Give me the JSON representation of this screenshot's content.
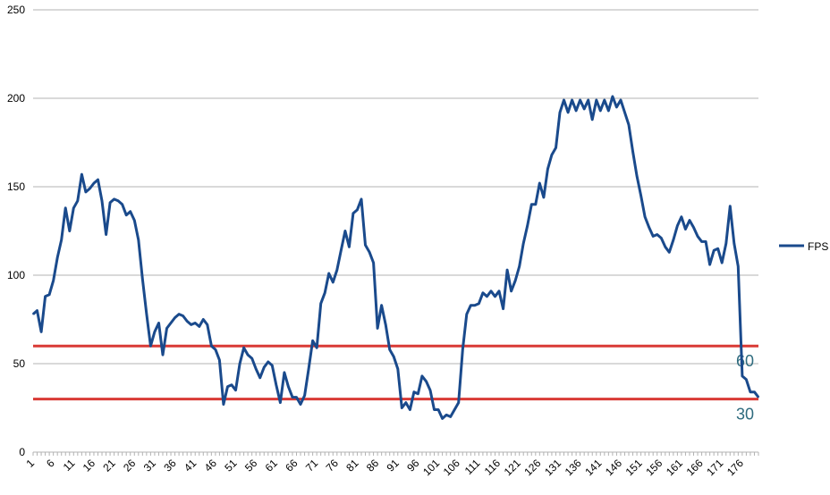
{
  "chart_data": {
    "type": "line",
    "title": "",
    "xlabel": "",
    "ylabel": "",
    "ylim": [
      0,
      250
    ],
    "y_ticks": [
      0,
      50,
      100,
      150,
      200,
      250
    ],
    "x_range": [
      1,
      180
    ],
    "x_tick_labels": [
      "1",
      "6",
      "11",
      "16",
      "21",
      "26",
      "31",
      "36",
      "41",
      "46",
      "51",
      "56",
      "61",
      "66",
      "71",
      "76",
      "81",
      "86",
      "91",
      "96",
      "101",
      "106",
      "111",
      "116",
      "121",
      "126",
      "131",
      "136",
      "141",
      "146",
      "151",
      "156",
      "161",
      "166",
      "171",
      "176"
    ],
    "grid": "horizontal",
    "legend_position": "right",
    "series": [
      {
        "name": "FPS",
        "color": "#1a4a8c",
        "x": [
          1,
          2,
          3,
          4,
          5,
          6,
          7,
          8,
          9,
          10,
          11,
          12,
          13,
          14,
          15,
          16,
          17,
          18,
          19,
          20,
          21,
          22,
          23,
          24,
          25,
          26,
          27,
          28,
          29,
          30,
          31,
          32,
          33,
          34,
          35,
          36,
          37,
          38,
          39,
          40,
          41,
          42,
          43,
          44,
          45,
          46,
          47,
          48,
          49,
          50,
          51,
          52,
          53,
          54,
          55,
          56,
          57,
          58,
          59,
          60,
          61,
          62,
          63,
          64,
          65,
          66,
          67,
          68,
          69,
          70,
          71,
          72,
          73,
          74,
          75,
          76,
          77,
          78,
          79,
          80,
          81,
          82,
          83,
          84,
          85,
          86,
          87,
          88,
          89,
          90,
          91,
          92,
          93,
          94,
          95,
          96,
          97,
          98,
          99,
          100,
          101,
          102,
          103,
          104,
          105,
          106,
          107,
          108,
          109,
          110,
          111,
          112,
          113,
          114,
          115,
          116,
          117,
          118,
          119,
          120,
          121,
          122,
          123,
          124,
          125,
          126,
          127,
          128,
          129,
          130,
          131,
          132,
          133,
          134,
          135,
          136,
          137,
          138,
          139,
          140,
          141,
          142,
          143,
          144,
          145,
          146,
          147,
          148,
          149,
          150,
          151,
          152,
          153,
          154,
          155,
          156,
          157,
          158,
          159,
          160,
          161,
          162,
          163,
          164,
          165,
          166,
          167,
          168,
          169,
          170,
          171,
          172,
          173,
          174,
          175,
          176,
          177,
          178,
          179,
          180
        ],
        "values": [
          78,
          80,
          68,
          88,
          89,
          97,
          110,
          120,
          138,
          125,
          138,
          142,
          157,
          147,
          149,
          152,
          154,
          142,
          123,
          141,
          143,
          142,
          140,
          134,
          136,
          131,
          120,
          98,
          78,
          60,
          68,
          73,
          55,
          70,
          73,
          76,
          78,
          77,
          74,
          72,
          73,
          71,
          75,
          72,
          60,
          58,
          52,
          27,
          37,
          38,
          35,
          50,
          59,
          55,
          53,
          47,
          42,
          48,
          51,
          49,
          38,
          28,
          45,
          37,
          31,
          31,
          27,
          32,
          47,
          63,
          59,
          84,
          90,
          101,
          96,
          103,
          114,
          125,
          116,
          135,
          137,
          143,
          117,
          113,
          107,
          70,
          83,
          72,
          58,
          54,
          47,
          25,
          28,
          24,
          34,
          33,
          43,
          40,
          35,
          24,
          24,
          19,
          21,
          20,
          24,
          28,
          58,
          78,
          83,
          83,
          84,
          90,
          88,
          91,
          88,
          91,
          81,
          103,
          91,
          97,
          105,
          118,
          128,
          140,
          140,
          152,
          144,
          160,
          168,
          172,
          192,
          199,
          192,
          199,
          193,
          199,
          194,
          199,
          188,
          199,
          193,
          199,
          193,
          201,
          195,
          199,
          192,
          185,
          170,
          156,
          145,
          133,
          127,
          122,
          123,
          121,
          116,
          113,
          120,
          128,
          133,
          126,
          131,
          127,
          122,
          119,
          119,
          106,
          114,
          115,
          107,
          118,
          139,
          118,
          105,
          43,
          41,
          34,
          34,
          31
        ]
      }
    ],
    "reference_lines": [
      {
        "value": 60,
        "label": "60",
        "color": "#d93a35",
        "label_color": "#2e6b7e"
      },
      {
        "value": 30,
        "label": "30",
        "color": "#d93a35",
        "label_color": "#2e6b7e"
      }
    ]
  }
}
